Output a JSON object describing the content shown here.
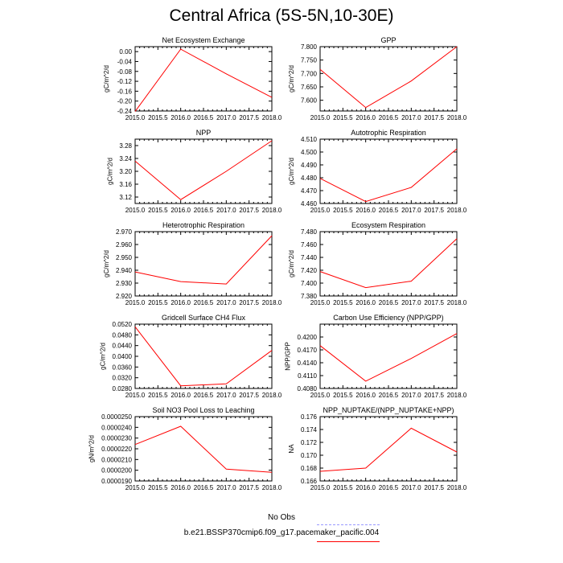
{
  "title": "Central Africa (5S-5N,10-30E)",
  "colors": {
    "series": "#ff0000",
    "obs": "#9999ff",
    "axis": "#000000"
  },
  "legend": {
    "obs_label": "No Obs",
    "model_label": "b.e21.BSSP370cmip6.f09_g17.pacemaker_pacific.004"
  },
  "chart_data": [
    {
      "type": "line",
      "title": "Net Ecosystem Exchange",
      "ylabel": "gC/m^2/d",
      "x": [
        2015.0,
        2016.0,
        2017.0,
        2018.0
      ],
      "y": [
        -0.242,
        0.01,
        -0.09,
        -0.185
      ],
      "xlim": [
        2015.0,
        2018.0
      ],
      "ylim": [
        -0.24,
        0.02
      ],
      "xticks": [
        "2015.0",
        "2015.5",
        "2016.0",
        "2016.5",
        "2017.0",
        "2017.5",
        "2018.0"
      ],
      "yticks": [
        -0.24,
        -0.2,
        -0.16,
        -0.12,
        -0.08,
        -0.04,
        0.0
      ],
      "ytick_labels": [
        "-0.24",
        "-0.20",
        "-0.16",
        "-0.12",
        "-0.08",
        "-0.04",
        "0.00"
      ]
    },
    {
      "type": "line",
      "title": "GPP",
      "ylabel": "gC/m^2/d",
      "x": [
        2015.0,
        2016.0,
        2017.0,
        2018.0
      ],
      "y": [
        7.715,
        7.573,
        7.672,
        7.8
      ],
      "xlim": [
        2015.0,
        2018.0
      ],
      "ylim": [
        7.56,
        7.8
      ],
      "xticks": [
        "2015.0",
        "2015.5",
        "2016.0",
        "2016.5",
        "2017.0",
        "2017.5",
        "2018.0"
      ],
      "yticks": [
        7.6,
        7.65,
        7.7,
        7.75,
        7.8
      ],
      "ytick_labels": [
        "7.600",
        "7.650",
        "7.700",
        "7.750",
        "7.800"
      ]
    },
    {
      "type": "line",
      "title": "NPP",
      "ylabel": "gC/m^2/d",
      "x": [
        2015.0,
        2016.0,
        2017.0,
        2018.0
      ],
      "y": [
        3.232,
        3.112,
        3.2,
        3.295
      ],
      "xlim": [
        2015.0,
        2018.0
      ],
      "ylim": [
        3.1,
        3.3
      ],
      "xticks": [
        "2015.0",
        "2015.5",
        "2016.0",
        "2016.5",
        "2017.0",
        "2017.5",
        "2018.0"
      ],
      "yticks": [
        3.12,
        3.16,
        3.2,
        3.24,
        3.28
      ],
      "ytick_labels": [
        "3.12",
        "3.16",
        "3.20",
        "3.24",
        "3.28"
      ]
    },
    {
      "type": "line",
      "title": "Autotrophic Respiration",
      "ylabel": "gC/m^2/d",
      "x": [
        2015.0,
        2016.0,
        2017.0,
        2018.0
      ],
      "y": [
        4.4795,
        4.4615,
        4.4725,
        4.5025
      ],
      "xlim": [
        2015.0,
        2018.0
      ],
      "ylim": [
        4.46,
        4.51
      ],
      "xticks": [
        "2015.0",
        "2015.5",
        "2016.0",
        "2016.5",
        "2017.0",
        "2017.5",
        "2018.0"
      ],
      "yticks": [
        4.46,
        4.47,
        4.48,
        4.49,
        4.5,
        4.51
      ],
      "ytick_labels": [
        "4.460",
        "4.470",
        "4.480",
        "4.490",
        "4.500",
        "4.510"
      ]
    },
    {
      "type": "line",
      "title": "Heterotrophic Respiration",
      "ylabel": "gC/m^2/d",
      "x": [
        2015.0,
        2016.0,
        2017.0,
        2018.0
      ],
      "y": [
        2.9387,
        2.9312,
        2.9293,
        2.9668
      ],
      "xlim": [
        2015.0,
        2018.0
      ],
      "ylim": [
        2.92,
        2.97
      ],
      "xticks": [
        "2015.0",
        "2015.5",
        "2016.0",
        "2016.5",
        "2017.0",
        "2017.5",
        "2018.0"
      ],
      "yticks": [
        2.92,
        2.93,
        2.94,
        2.95,
        2.96,
        2.97
      ],
      "ytick_labels": [
        "2.920",
        "2.930",
        "2.940",
        "2.950",
        "2.960",
        "2.970"
      ]
    },
    {
      "type": "line",
      "title": "Ecosystem Respiration",
      "ylabel": "gC/m^2/d",
      "x": [
        2015.0,
        2016.0,
        2017.0,
        2018.0
      ],
      "y": [
        7.418,
        7.393,
        7.403,
        7.469
      ],
      "xlim": [
        2015.0,
        2018.0
      ],
      "ylim": [
        7.38,
        7.48
      ],
      "xticks": [
        "2015.0",
        "2015.5",
        "2016.0",
        "2016.5",
        "2017.0",
        "2017.5",
        "2018.0"
      ],
      "yticks": [
        7.38,
        7.4,
        7.42,
        7.44,
        7.46,
        7.48
      ],
      "ytick_labels": [
        "7.380",
        "7.400",
        "7.420",
        "7.440",
        "7.460",
        "7.480"
      ]
    },
    {
      "type": "line",
      "title": "Gridcell Surface CH4 Flux",
      "ylabel": "gC/m^2/d",
      "x": [
        2015.0,
        2016.0,
        2017.0,
        2018.0
      ],
      "y": [
        0.051,
        0.029,
        0.0297,
        0.0422
      ],
      "xlim": [
        2015.0,
        2018.0
      ],
      "ylim": [
        0.028,
        0.052
      ],
      "xticks": [
        "2015.0",
        "2015.5",
        "2016.0",
        "2016.5",
        "2017.0",
        "2017.5",
        "2018.0"
      ],
      "yticks": [
        0.028,
        0.032,
        0.036,
        0.04,
        0.044,
        0.048,
        0.052
      ],
      "ytick_labels": [
        "0.0280",
        "0.0320",
        "0.0360",
        "0.0400",
        "0.0440",
        "0.0480",
        "0.0520"
      ]
    },
    {
      "type": "line",
      "title": "Carbon Use Efficiency (NPP/GPP)",
      "ylabel": "NPP/GPP",
      "x": [
        2015.0,
        2016.0,
        2017.0,
        2018.0
      ],
      "y": [
        0.418,
        0.4097,
        0.415,
        0.4208
      ],
      "xlim": [
        2015.0,
        2018.0
      ],
      "ylim": [
        0.408,
        0.423
      ],
      "xticks": [
        "2015.0",
        "2015.5",
        "2016.0",
        "2016.5",
        "2017.0",
        "2017.5",
        "2018.0"
      ],
      "yticks": [
        0.408,
        0.411,
        0.414,
        0.417,
        0.42
      ],
      "ytick_labels": [
        "0.4080",
        "0.4110",
        "0.4140",
        "0.4170",
        "0.4200"
      ]
    },
    {
      "type": "line",
      "title": "Soil NO3 Pool Loss to Leaching",
      "ylabel": "gN/m^2/d",
      "x": [
        2015.0,
        2016.0,
        2017.0,
        2018.0
      ],
      "y": [
        2.24e-05,
        2.41e-05,
        2.01e-05,
        1.98e-05
      ],
      "xlim": [
        2015.0,
        2018.0
      ],
      "ylim": [
        1.9e-05,
        2.5e-05
      ],
      "xticks": [
        "2015.0",
        "2015.5",
        "2016.0",
        "2016.5",
        "2017.0",
        "2017.5",
        "2018.0"
      ],
      "yticks": [
        1.9e-05,
        2e-05,
        2.1e-05,
        2.2e-05,
        2.3e-05,
        2.4e-05,
        2.5e-05
      ],
      "ytick_labels": [
        "0.0000190",
        "0.0000200",
        "0.0000210",
        "0.0000220",
        "0.0000230",
        "0.0000240",
        "0.0000250"
      ]
    },
    {
      "type": "line",
      "title": "NPP_NUPTAKE/(NPP_NUPTAKE+NPP)",
      "ylabel": "NA",
      "x": [
        2015.0,
        2016.0,
        2017.0,
        2018.0
      ],
      "y": [
        0.1675,
        0.168,
        0.1742,
        0.1705
      ],
      "xlim": [
        2015.0,
        2018.0
      ],
      "ylim": [
        0.166,
        0.176
      ],
      "xticks": [
        "2015.0",
        "2015.5",
        "2016.0",
        "2016.5",
        "2017.0",
        "2017.5",
        "2018.0"
      ],
      "yticks": [
        0.166,
        0.168,
        0.17,
        0.172,
        0.174,
        0.176
      ],
      "ytick_labels": [
        "0.166",
        "0.168",
        "0.170",
        "0.172",
        "0.174",
        "0.176"
      ]
    }
  ]
}
